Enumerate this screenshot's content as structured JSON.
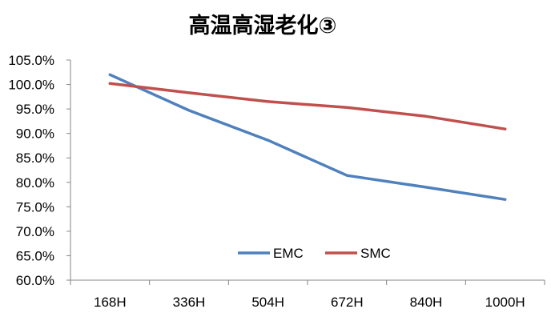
{
  "chart_data": {
    "type": "line",
    "title": "高温高湿老化③",
    "categories": [
      "168H",
      "336H",
      "504H",
      "672H",
      "840H",
      "1000H"
    ],
    "y_tick_labels": [
      "60.0%",
      "65.0%",
      "70.0%",
      "75.0%",
      "80.0%",
      "85.0%",
      "90.0%",
      "95.0%",
      "100.0%",
      "105.0%"
    ],
    "ylim": [
      60,
      105
    ],
    "y_step": 5,
    "y_unit": "%",
    "grid": false,
    "legend_position": "inside-bottom-center",
    "series": [
      {
        "name": "EMC",
        "color": "#4f81bd",
        "values": [
          102.0,
          94.7,
          88.6,
          81.4,
          79.0,
          76.5
        ]
      },
      {
        "name": "SMC",
        "color": "#c0504d",
        "values": [
          100.2,
          98.3,
          96.5,
          95.3,
          93.5,
          90.9
        ]
      }
    ]
  }
}
